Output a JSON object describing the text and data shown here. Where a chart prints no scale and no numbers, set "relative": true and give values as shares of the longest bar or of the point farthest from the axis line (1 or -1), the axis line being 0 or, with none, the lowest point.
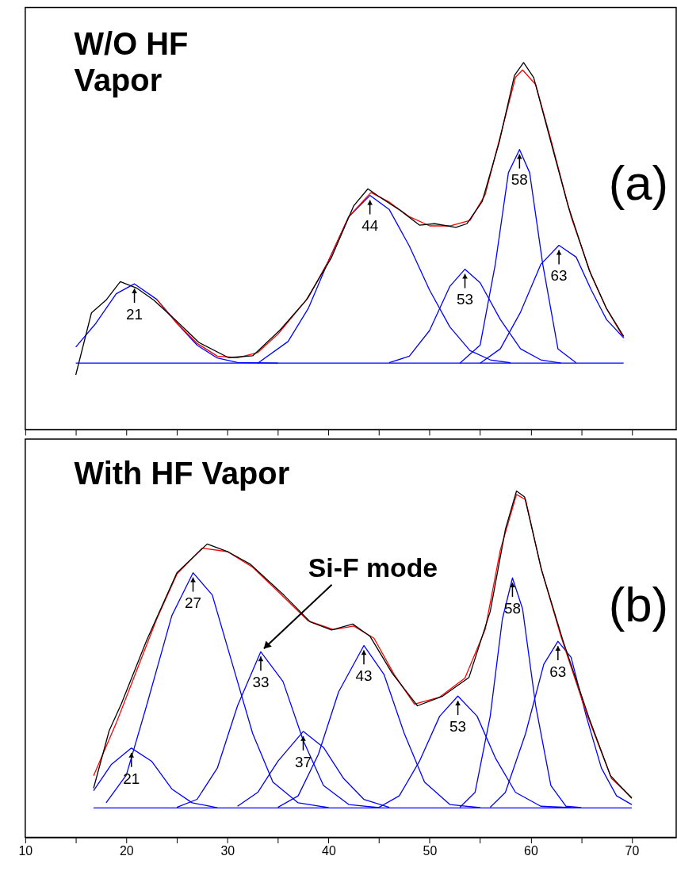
{
  "chart_data": [
    {
      "type": "line",
      "title": "W/O HF\nVapor",
      "relative": true,
      "xlim": [
        10,
        74.4
      ],
      "xticks": [
        10,
        {
          "value": 15,
          "label": null
        },
        20,
        {
          "value": 25,
          "label": null
        },
        30,
        {
          "value": 35,
          "label": null
        },
        40,
        {
          "value": 45,
          "label": null
        },
        50,
        {
          "value": 55,
          "label": null
        },
        60,
        {
          "value": 65,
          "label": null
        },
        70
      ],
      "tick_labels": false,
      "grid": false,
      "legend": false,
      "marker": "none",
      "line_style": "solid",
      "annotations": [
        "(a)",
        {
          "text": "21",
          "x": 20.8,
          "y": 0.397
        },
        {
          "text": "44",
          "x": 44.1,
          "y": 0.638
        },
        {
          "text": "53",
          "x": 53.5,
          "y": 0.437
        },
        {
          "text": "58",
          "x": 58.9,
          "y": 0.763
        },
        {
          "text": "63",
          "x": 62.8,
          "y": 0.502
        }
      ],
      "series": [
        {
          "color": "#000000",
          "x": [
            15,
            16.55,
            18,
            19.4,
            21,
            22.7,
            24.8,
            27.2,
            30.1,
            32.5,
            35.2,
            37.8,
            40.3,
            42.5,
            43.9,
            45,
            47.1,
            49,
            50.5,
            52.6,
            53.7,
            55.2,
            56.9,
            58.4,
            59.3,
            60.3,
            62,
            63.7,
            65.8,
            67.5,
            69.2
          ],
          "values": [
            0.149,
            0.318,
            0.353,
            0.403,
            0.386,
            0.353,
            0.3,
            0.237,
            0.196,
            0.201,
            0.271,
            0.353,
            0.469,
            0.61,
            0.656,
            0.635,
            0.597,
            0.557,
            0.561,
            0.551,
            0.561,
            0.621,
            0.784,
            0.965,
            1.0,
            0.959,
            0.784,
            0.61,
            0.434,
            0.33,
            0.254
          ]
        },
        {
          "color": "#ff0000",
          "x": [
            23,
            25,
            27,
            29,
            31,
            33,
            35,
            38,
            40,
            42,
            44.2,
            46,
            48,
            50,
            52,
            54,
            55.5,
            57,
            58.5,
            59.2,
            60.5,
            62,
            64,
            66,
            67.5,
            69.2
          ],
          "values": [
            0.355,
            0.29,
            0.235,
            0.2,
            0.196,
            0.21,
            0.26,
            0.36,
            0.46,
            0.58,
            0.646,
            0.62,
            0.58,
            0.555,
            0.555,
            0.57,
            0.64,
            0.8,
            0.96,
            0.98,
            0.94,
            0.79,
            0.58,
            0.42,
            0.33,
            0.25
          ]
        },
        {
          "color": "#0000ff",
          "x": [
            15,
            17,
            19,
            20.8,
            23,
            25,
            27,
            29,
            31,
            35
          ],
          "values": [
            0.225,
            0.29,
            0.37,
            0.397,
            0.355,
            0.29,
            0.23,
            0.195,
            0.183,
            0.181
          ]
        },
        {
          "color": "#0000ff",
          "x": [
            33,
            36,
            38,
            40,
            42,
            44.1,
            46,
            48,
            50,
            52,
            54,
            56,
            58
          ],
          "values": [
            0.181,
            0.24,
            0.33,
            0.46,
            0.58,
            0.638,
            0.6,
            0.5,
            0.38,
            0.28,
            0.215,
            0.19,
            0.182
          ]
        },
        {
          "color": "#0000ff",
          "x": [
            46,
            48,
            50,
            52,
            53.5,
            55,
            57,
            59,
            61,
            63
          ],
          "values": [
            0.182,
            0.2,
            0.27,
            0.39,
            0.437,
            0.4,
            0.3,
            0.22,
            0.19,
            0.181
          ]
        },
        {
          "color": "#0000ff",
          "x": [
            53,
            55,
            56.5,
            57.8,
            58.9,
            59.9,
            61.2,
            62.7,
            64.5
          ],
          "values": [
            0.181,
            0.23,
            0.45,
            0.7,
            0.763,
            0.7,
            0.45,
            0.22,
            0.182
          ]
        },
        {
          "color": "#0000ff",
          "x": [
            55,
            57,
            59,
            61,
            62.8,
            64.5,
            66,
            67.5,
            69.2
          ],
          "values": [
            0.181,
            0.22,
            0.32,
            0.45,
            0.502,
            0.47,
            0.38,
            0.3,
            0.25
          ]
        },
        {
          "color": "#0000ff",
          "x": [
            15,
            69.2
          ],
          "values": [
            0.181,
            0.181
          ]
        }
      ]
    },
    {
      "type": "line",
      "title": "With HF Vapor",
      "relative": true,
      "xlim": [
        10,
        74.4
      ],
      "xticks": [
        10,
        {
          "value": 15,
          "label": null
        },
        20,
        {
          "value": 25,
          "label": null
        },
        30,
        {
          "value": 35,
          "label": null
        },
        40,
        {
          "value": 45,
          "label": null
        },
        50,
        {
          "value": 55,
          "label": null
        },
        60,
        {
          "value": 65,
          "label": null
        },
        70
      ],
      "tick_labels": "x",
      "grid": false,
      "legend": false,
      "marker": "none",
      "line_style": "solid",
      "annotations": [
        "(b)",
        {
          "text": "21",
          "x": 20.5,
          "y": 0.258
        },
        {
          "text": "27",
          "x": 26.6,
          "y": 0.764
        },
        {
          "text": "33",
          "x": 33.3,
          "y": 0.536
        },
        {
          "text": "37",
          "x": 37.5,
          "y": 0.306
        },
        {
          "text": "43",
          "x": 43.5,
          "y": 0.554
        },
        {
          "text": "53",
          "x": 52.8,
          "y": 0.408
        },
        {
          "text": "58",
          "x": 58.2,
          "y": 0.749
        },
        {
          "text": "63",
          "x": 62.7,
          "y": 0.566
        },
        {
          "text": "Si-F mode",
          "x": 33.3,
          "y": 0.536
        }
      ],
      "series": [
        {
          "color": "#000000",
          "x": [
            16.76,
            18.3,
            19.5,
            22,
            25,
            28,
            30.1,
            32.3,
            35.6,
            38.2,
            40.3,
            42.4,
            44.1,
            46.3,
            48.8,
            51.3,
            53.9,
            56,
            57.5,
            58.6,
            59.4,
            61.1,
            63.2,
            65.8,
            67.9,
            70
          ],
          "values": [
            0.142,
            0.308,
            0.385,
            0.568,
            0.764,
            0.847,
            0.824,
            0.788,
            0.699,
            0.622,
            0.599,
            0.616,
            0.581,
            0.474,
            0.38,
            0.408,
            0.462,
            0.652,
            0.889,
            1.0,
            0.983,
            0.77,
            0.568,
            0.343,
            0.178,
            0.113
          ]
        },
        {
          "color": "#ff0000",
          "x": [
            16.76,
            19,
            21,
            23,
            25,
            27.5,
            30,
            32.5,
            35,
            38,
            40.5,
            42.5,
            44.5,
            46.5,
            48.5,
            51,
            53.5,
            55.5,
            57,
            58.6,
            59.5,
            61,
            63,
            65.5,
            68,
            70
          ],
          "values": [
            0.178,
            0.33,
            0.48,
            0.63,
            0.76,
            0.835,
            0.825,
            0.78,
            0.71,
            0.625,
            0.6,
            0.61,
            0.575,
            0.47,
            0.385,
            0.405,
            0.46,
            0.6,
            0.83,
            0.99,
            0.975,
            0.78,
            0.58,
            0.36,
            0.17,
            0.115
          ]
        },
        {
          "color": "#0000ff",
          "x": [
            16.76,
            18.5,
            20.5,
            22.5,
            24.5,
            26.5,
            29
          ],
          "values": [
            0.135,
            0.21,
            0.258,
            0.22,
            0.14,
            0.1,
            0.086
          ]
        },
        {
          "color": "#0000ff",
          "x": [
            18,
            20,
            22,
            24.5,
            26.6,
            28.5,
            30.5,
            32.5,
            34.5,
            37,
            40
          ],
          "values": [
            0.1,
            0.18,
            0.38,
            0.64,
            0.764,
            0.7,
            0.5,
            0.3,
            0.16,
            0.1,
            0.086
          ]
        },
        {
          "color": "#0000ff",
          "x": [
            25,
            27,
            29,
            31,
            33.3,
            35.5,
            37.5,
            39.5,
            42,
            45
          ],
          "values": [
            0.087,
            0.11,
            0.2,
            0.38,
            0.536,
            0.45,
            0.28,
            0.15,
            0.095,
            0.086
          ]
        },
        {
          "color": "#0000ff",
          "x": [
            31,
            33,
            35,
            37.5,
            39.5,
            41.5,
            43.5,
            46
          ],
          "values": [
            0.09,
            0.13,
            0.22,
            0.306,
            0.26,
            0.17,
            0.11,
            0.087
          ]
        },
        {
          "color": "#0000ff",
          "x": [
            35,
            37,
            39,
            41,
            43.5,
            45.5,
            47.5,
            49.5,
            52,
            55
          ],
          "values": [
            0.087,
            0.12,
            0.24,
            0.42,
            0.554,
            0.47,
            0.3,
            0.16,
            0.095,
            0.086
          ]
        },
        {
          "color": "#0000ff",
          "x": [
            45,
            47,
            49,
            51,
            52.8,
            54.7,
            56.5,
            58.5,
            61,
            64
          ],
          "values": [
            0.087,
            0.12,
            0.22,
            0.35,
            0.408,
            0.35,
            0.23,
            0.13,
            0.09,
            0.086
          ]
        },
        {
          "color": "#0000ff",
          "x": [
            53,
            54.5,
            56,
            57.2,
            58.2,
            59.2,
            60.5,
            62,
            63.5,
            65
          ],
          "values": [
            0.087,
            0.13,
            0.35,
            0.63,
            0.749,
            0.66,
            0.38,
            0.15,
            0.09,
            0.086
          ]
        },
        {
          "color": "#0000ff",
          "x": [
            56,
            57.5,
            59.5,
            61.3,
            62.7,
            64,
            65.5,
            67,
            68.5,
            70
          ],
          "values": [
            0.087,
            0.13,
            0.3,
            0.5,
            0.566,
            0.52,
            0.35,
            0.2,
            0.12,
            0.095
          ]
        },
        {
          "color": "#0000ff",
          "x": [
            16.76,
            70
          ],
          "values": [
            0.085,
            0.085
          ]
        }
      ]
    }
  ]
}
